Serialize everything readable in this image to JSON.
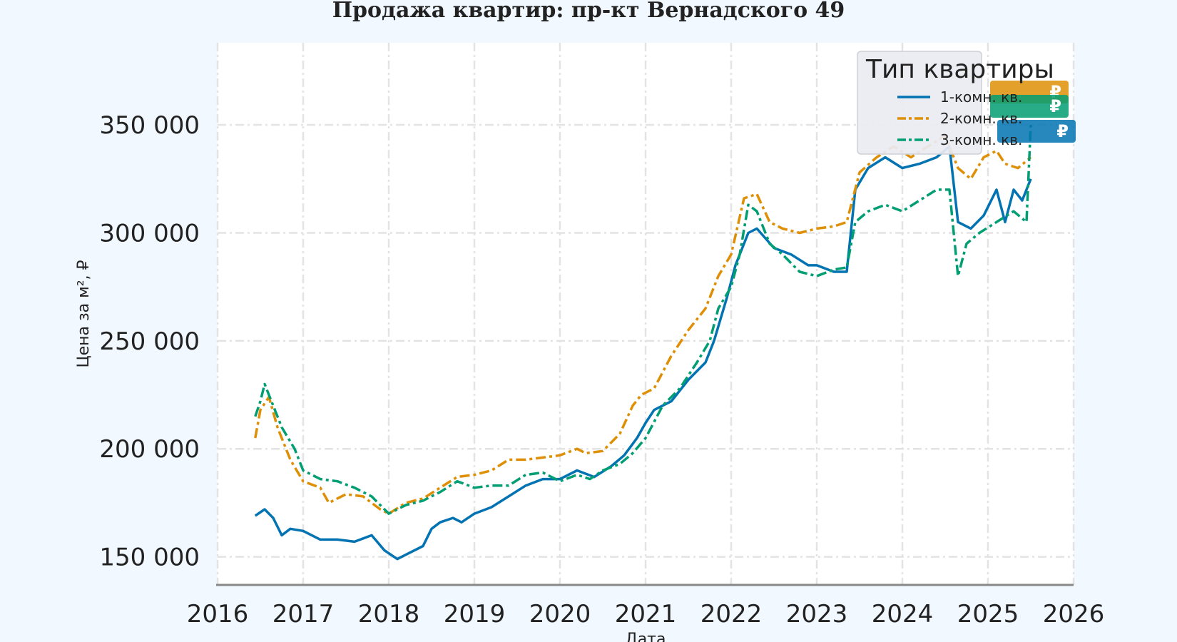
{
  "chart_data": {
    "type": "line",
    "title": "Продажа квартир: пр-кт Вернадского 49",
    "xlabel": "Дата",
    "ylabel": "Цена за м², ₽",
    "xlim": [
      2016,
      2026
    ],
    "ylim": [
      137000,
      388000
    ],
    "x_ticks": [
      "2016",
      "2017",
      "2018",
      "2019",
      "2020",
      "2021",
      "2022",
      "2023",
      "2024",
      "2025",
      "2026"
    ],
    "y_ticks": [
      "150 000",
      "200 000",
      "250 000",
      "300 000",
      "350 000"
    ],
    "y_tick_values": [
      150000,
      200000,
      250000,
      300000,
      350000
    ],
    "grid": true,
    "legend_title": "Тип квартиры",
    "legend_position": "top-right",
    "series": [
      {
        "name": "1-комн. кв.",
        "color": "#0173b2",
        "dash": "solid",
        "x": [
          2016.44,
          2016.55,
          2016.65,
          2016.75,
          2016.85,
          2017.0,
          2017.2,
          2017.4,
          2017.6,
          2017.8,
          2017.95,
          2018.1,
          2018.2,
          2018.4,
          2018.5,
          2018.6,
          2018.75,
          2018.85,
          2019.0,
          2019.2,
          2019.4,
          2019.6,
          2019.8,
          2020.0,
          2020.2,
          2020.4,
          2020.6,
          2020.75,
          2020.9,
          2021.0,
          2021.1,
          2021.3,
          2021.5,
          2021.7,
          2021.8,
          2021.95,
          2022.05,
          2022.2,
          2022.3,
          2022.5,
          2022.7,
          2022.9,
          2023.0,
          2023.2,
          2023.35,
          2023.45,
          2023.6,
          2023.8,
          2024.0,
          2024.2,
          2024.4,
          2024.55,
          2024.65,
          2024.8,
          2024.95,
          2025.1,
          2025.2,
          2025.3,
          2025.4,
          2025.5
        ],
        "y": [
          169000,
          172000,
          168000,
          160000,
          163000,
          162000,
          158000,
          158000,
          157000,
          160000,
          153000,
          149000,
          151000,
          155000,
          163000,
          166000,
          168000,
          166000,
          170000,
          173000,
          178000,
          183000,
          186000,
          186000,
          190000,
          187000,
          192000,
          197000,
          205000,
          212000,
          218000,
          222000,
          232000,
          240000,
          250000,
          270000,
          285000,
          300000,
          302000,
          293000,
          290000,
          285000,
          285000,
          282000,
          282000,
          320000,
          330000,
          335000,
          330000,
          332000,
          335000,
          340000,
          305000,
          302000,
          308000,
          320000,
          305000,
          320000,
          315000,
          325000
        ]
      },
      {
        "name": "2-комн. кв.",
        "color": "#de8f05",
        "dash": "dash-dot",
        "x": [
          2016.44,
          2016.5,
          2016.6,
          2016.7,
          2016.85,
          2017.0,
          2017.2,
          2017.3,
          2017.5,
          2017.7,
          2017.9,
          2018.0,
          2018.2,
          2018.4,
          2018.6,
          2018.8,
          2019.0,
          2019.2,
          2019.4,
          2019.6,
          2019.8,
          2020.0,
          2020.2,
          2020.3,
          2020.5,
          2020.7,
          2020.85,
          2020.95,
          2021.1,
          2021.3,
          2021.5,
          2021.7,
          2021.85,
          2022.0,
          2022.15,
          2022.3,
          2022.45,
          2022.6,
          2022.8,
          2023.0,
          2023.2,
          2023.35,
          2023.5,
          2023.7,
          2023.9,
          2024.1,
          2024.3,
          2024.5,
          2024.65,
          2024.8,
          2024.95,
          2025.1,
          2025.2,
          2025.35,
          2025.5
        ],
        "y": [
          205000,
          218000,
          224000,
          210000,
          195000,
          185000,
          182000,
          175000,
          179000,
          178000,
          172000,
          170000,
          175000,
          177000,
          182000,
          187000,
          188000,
          190000,
          195000,
          195000,
          196000,
          197000,
          200000,
          198000,
          199000,
          207000,
          220000,
          225000,
          228000,
          243000,
          255000,
          265000,
          280000,
          290000,
          316000,
          318000,
          305000,
          302000,
          300000,
          302000,
          303000,
          305000,
          328000,
          335000,
          340000,
          335000,
          340000,
          345000,
          330000,
          325000,
          335000,
          338000,
          332000,
          330000,
          335000
        ]
      },
      {
        "name": "3-комн. кв.",
        "color": "#029e73",
        "dash": "dash-dot",
        "x": [
          2016.44,
          2016.5,
          2016.55,
          2016.65,
          2016.75,
          2016.9,
          2017.0,
          2017.2,
          2017.4,
          2017.6,
          2017.8,
          2018.0,
          2018.2,
          2018.4,
          2018.6,
          2018.8,
          2019.0,
          2019.2,
          2019.4,
          2019.6,
          2019.8,
          2020.0,
          2020.2,
          2020.35,
          2020.5,
          2020.7,
          2020.85,
          2021.0,
          2021.2,
          2021.4,
          2021.6,
          2021.75,
          2021.85,
          2022.0,
          2022.1,
          2022.2,
          2022.3,
          2022.45,
          2022.6,
          2022.8,
          2023.0,
          2023.2,
          2023.35,
          2023.45,
          2023.6,
          2023.8,
          2024.0,
          2024.2,
          2024.4,
          2024.55,
          2024.65,
          2024.75,
          2024.9,
          2025.1,
          2025.3,
          2025.45,
          2025.5
        ],
        "y": [
          215000,
          222000,
          230000,
          220000,
          210000,
          200000,
          190000,
          186000,
          185000,
          182000,
          178000,
          170000,
          174000,
          176000,
          180000,
          185000,
          182000,
          183000,
          183000,
          188000,
          189000,
          185000,
          188000,
          186000,
          190000,
          193000,
          198000,
          205000,
          220000,
          228000,
          240000,
          250000,
          265000,
          275000,
          290000,
          313000,
          310000,
          295000,
          290000,
          282000,
          280000,
          283000,
          284000,
          305000,
          310000,
          313000,
          310000,
          315000,
          320000,
          320000,
          280000,
          295000,
          300000,
          305000,
          310000,
          305000,
          350000
        ]
      }
    ],
    "end_labels": [
      {
        "text": "₽",
        "color": "#de8f05"
      },
      {
        "text": "₽",
        "color": "#029e73"
      },
      {
        "text": "₽",
        "color": "#0173b2"
      }
    ]
  }
}
